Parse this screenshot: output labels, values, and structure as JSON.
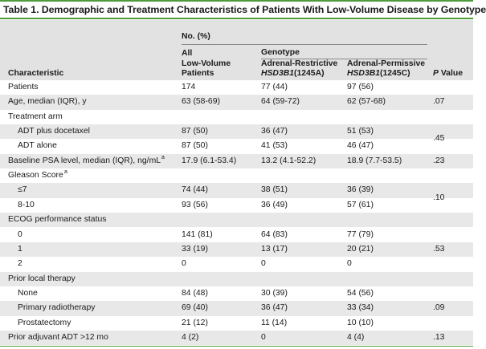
{
  "title": "Table 1. Demographic and Treatment Characteristics of Patients With Low-Volume Disease by Genotype",
  "header": {
    "no_pct": "No. (%)",
    "genotype": "Genotype",
    "characteristic": "Characteristic",
    "all_line1": "All",
    "all_line2": "Low-Volume",
    "all_line3": "Patients",
    "restrictive_line1": "Adrenal-Restrictive",
    "restrictive_line2_gene": "HSD3B1",
    "restrictive_line2_rest": "(1245A)",
    "permissive_line1": "Adrenal-Permissive",
    "permissive_line2_gene": "HSD3B1",
    "permissive_line2_rest": "(1245C)",
    "p_value": "P Value"
  },
  "rows": [
    {
      "label": "Patients",
      "indent": false,
      "all": "174",
      "restrictive": "77 (44)",
      "permissive": "97 (56)",
      "p": ""
    },
    {
      "label": "Age, median (IQR), y",
      "indent": false,
      "all": "63 (58-69)",
      "restrictive": "64 (59-72)",
      "permissive": "62 (57-68)",
      "p": ".07"
    },
    {
      "label": "Treatment arm",
      "indent": false,
      "all": "",
      "restrictive": "",
      "permissive": "",
      "p": ""
    },
    {
      "label": "ADT plus docetaxel",
      "indent": true,
      "all": "87 (50)",
      "restrictive": "36 (47)",
      "permissive": "51 (53)",
      "p": ""
    },
    {
      "label": "ADT alone",
      "indent": true,
      "all": "87 (50)",
      "restrictive": "41 (53)",
      "permissive": "46 (47)",
      "p": ""
    },
    {
      "label": "Baseline PSA level, median (IQR), ng/mL",
      "sup": "a",
      "indent": false,
      "all": "17.9 (6.1-53.4)",
      "restrictive": "13.2 (4.1-52.2)",
      "permissive": "18.9 (7.7-53.5)",
      "p": ".23"
    },
    {
      "label": "Gleason Score",
      "sup": "a",
      "indent": false,
      "all": "",
      "restrictive": "",
      "permissive": "",
      "p": ""
    },
    {
      "label": "≤7",
      "indent": true,
      "all": "74 (44)",
      "restrictive": "38 (51)",
      "permissive": "36 (39)",
      "p": ""
    },
    {
      "label": "8-10",
      "indent": true,
      "all": "93 (56)",
      "restrictive": "36 (49)",
      "permissive": "57 (61)",
      "p": ""
    },
    {
      "label": "ECOG performance status",
      "indent": false,
      "all": "",
      "restrictive": "",
      "permissive": "",
      "p": ""
    },
    {
      "label": "0",
      "indent": true,
      "all": "141 (81)",
      "restrictive": "64 (83)",
      "permissive": "77 (79)",
      "p": ""
    },
    {
      "label": "1",
      "indent": true,
      "all": "33 (19)",
      "restrictive": "13 (17)",
      "permissive": "20 (21)",
      "p": ""
    },
    {
      "label": "2",
      "indent": true,
      "all": "0",
      "restrictive": "0",
      "permissive": "0",
      "p": ""
    },
    {
      "label": "Prior local therapy",
      "indent": false,
      "all": "",
      "restrictive": "",
      "permissive": "",
      "p": ""
    },
    {
      "label": "None",
      "indent": true,
      "all": "84 (48)",
      "restrictive": "30 (39)",
      "permissive": "54 (56)",
      "p": ""
    },
    {
      "label": "Primary radiotherapy",
      "indent": true,
      "all": "69 (40)",
      "restrictive": "36 (47)",
      "permissive": "33 (34)",
      "p": ""
    },
    {
      "label": "Prostatectomy",
      "indent": true,
      "all": "21 (12)",
      "restrictive": "11 (14)",
      "permissive": "10 (10)",
      "p": ""
    },
    {
      "label": "Prior adjuvant ADT >12 mo",
      "indent": false,
      "all": "4 (2)",
      "restrictive": "0",
      "permissive": "4 (4)",
      "p": ".13"
    }
  ],
  "group_p_values": [
    {
      "value": ".45"
    },
    {
      "value": ".10"
    },
    {
      "value": ".53"
    },
    {
      "value": ".09"
    }
  ]
}
